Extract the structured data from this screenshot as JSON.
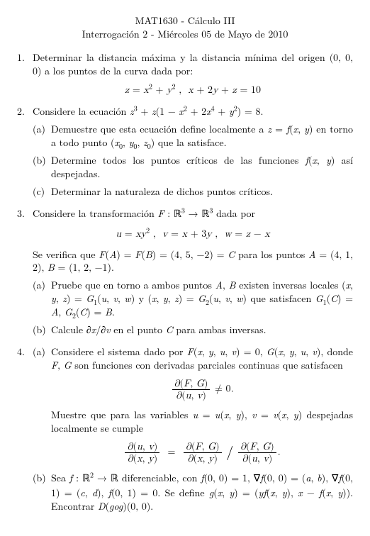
{
  "header": {
    "course": "MAT1630 - Cálculo III",
    "subtitle": "Interrogación 2 - Miércoles 05 de Mayo de 2010"
  },
  "q1": {
    "text": "Determinar la distancia máxima y la distancia mínima del origen (0, 0, 0) a los puntos de la curva dada por:"
  },
  "q2": {
    "a": "Demuestre que esta ecuación define localmente a ",
    "a2": " en torno a todo punto ",
    "a3": " que la satisface.",
    "b": "Determine todos los puntos críticos de las funciones ",
    "b2": " así despejadas.",
    "c": "Determinar la naturaleza de dichos puntos críticos."
  },
  "q3": {
    "a": "Pruebe que en torno a ambos puntos ",
    "a2": " existen inversas locales ",
    "a3": " que satisfacen ",
    "b": "Calcule ",
    "b2": " en el punto ",
    "b3": " para ambas inversas."
  },
  "q4": {
    "a1": "Considere el sistema dado por ",
    "a1b": ", donde ",
    "a1c": " son funciones con derivadas parciales continuas que satisfacen",
    "a2": "Muestre que para las variables ",
    "a2b": " despejadas localmente se cumple",
    "b1": "Sea ",
    "b2": " diferenciable, con ",
    "b3": ". Se define ",
    "b4": ". Encontrar "
  }
}
